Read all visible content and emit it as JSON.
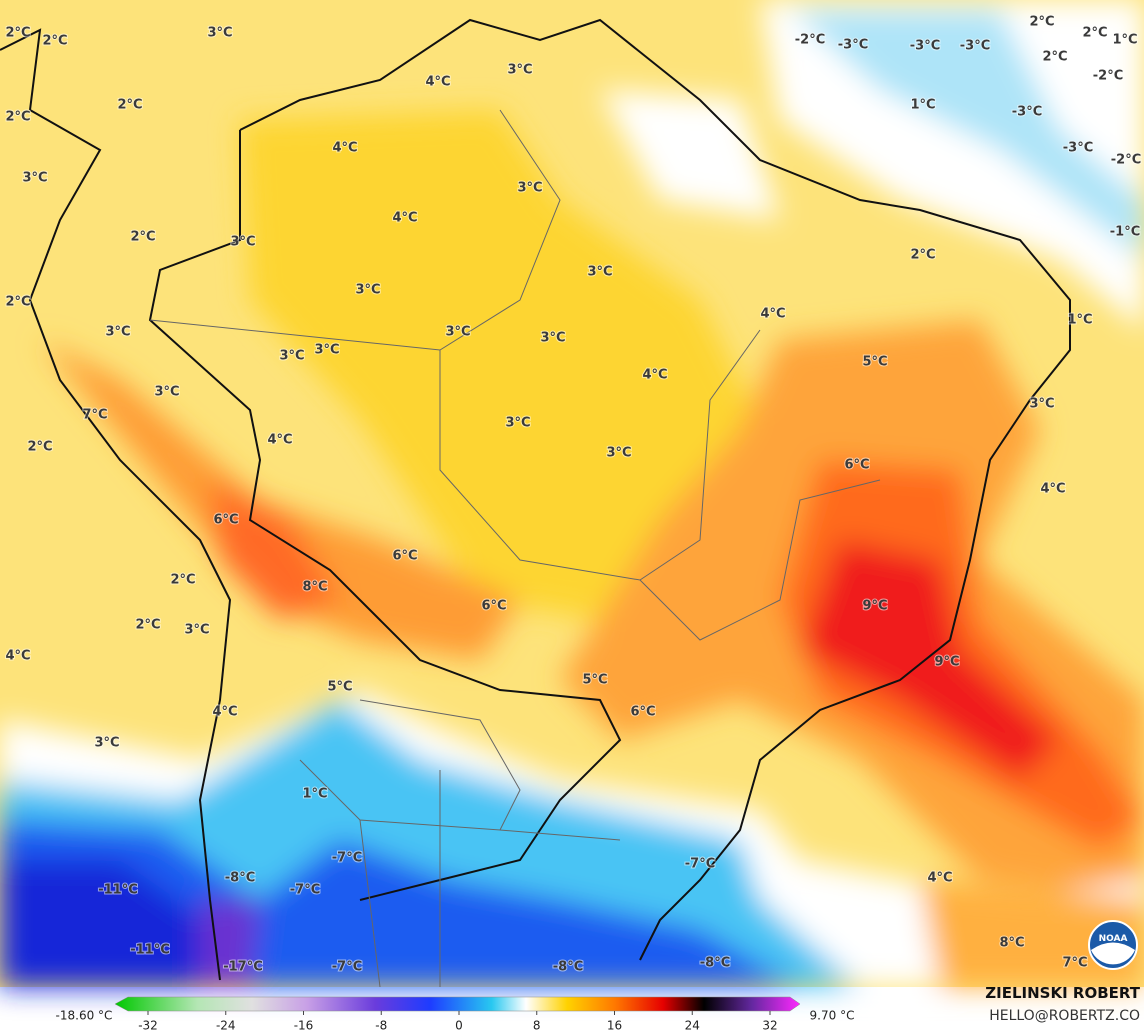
{
  "map": {
    "labels": [
      "2°C",
      "2°C",
      "3°C",
      "2°C",
      "2°C",
      "3°C",
      "4°C",
      "3°C",
      "4°C",
      "3°C",
      "4°C",
      "3°C",
      "2°C",
      "3°C",
      "3°C",
      "2°C",
      "3°C",
      "3°C",
      "3°C",
      "4°C",
      "2°C",
      "3°C",
      "3°C",
      "4°C",
      "5°C",
      "1°C",
      "3°C",
      "7°C",
      "2°C",
      "4°C",
      "3°C",
      "3°C",
      "3°C",
      "6°C",
      "4°C",
      "6°C",
      "6°C",
      "2°C",
      "8°C",
      "6°C",
      "9°C",
      "2°C",
      "3°C",
      "4°C",
      "9°C",
      "5°C",
      "5°C",
      "6°C",
      "4°C",
      "3°C",
      "1°C",
      "-7°C",
      "-7°C",
      "-11°C",
      "-8°C",
      "-7°C",
      "4°C",
      "-11°C",
      "-17°C",
      "-7°C",
      "-8°C",
      "-8°C",
      "8°C",
      "7°C",
      "-2°C",
      "-3°C",
      "-3°C",
      "-3°C",
      "2°C",
      "2°C",
      "1°C",
      "2°C",
      "-2°C",
      "1°C",
      "-3°C",
      "-3°C",
      "-2°C",
      "-1°C"
    ]
  },
  "colorbar": {
    "min_label": "-18.60 °C",
    "max_label": "9.70 °C",
    "ticks": [
      -32,
      -24,
      -16,
      -8,
      0,
      8,
      16,
      24,
      32
    ]
  },
  "credits": {
    "author": "ZIELINSKI ROBERT",
    "contact": "HELLO@ROBERTZ.CO",
    "logo": "NOAA"
  }
}
